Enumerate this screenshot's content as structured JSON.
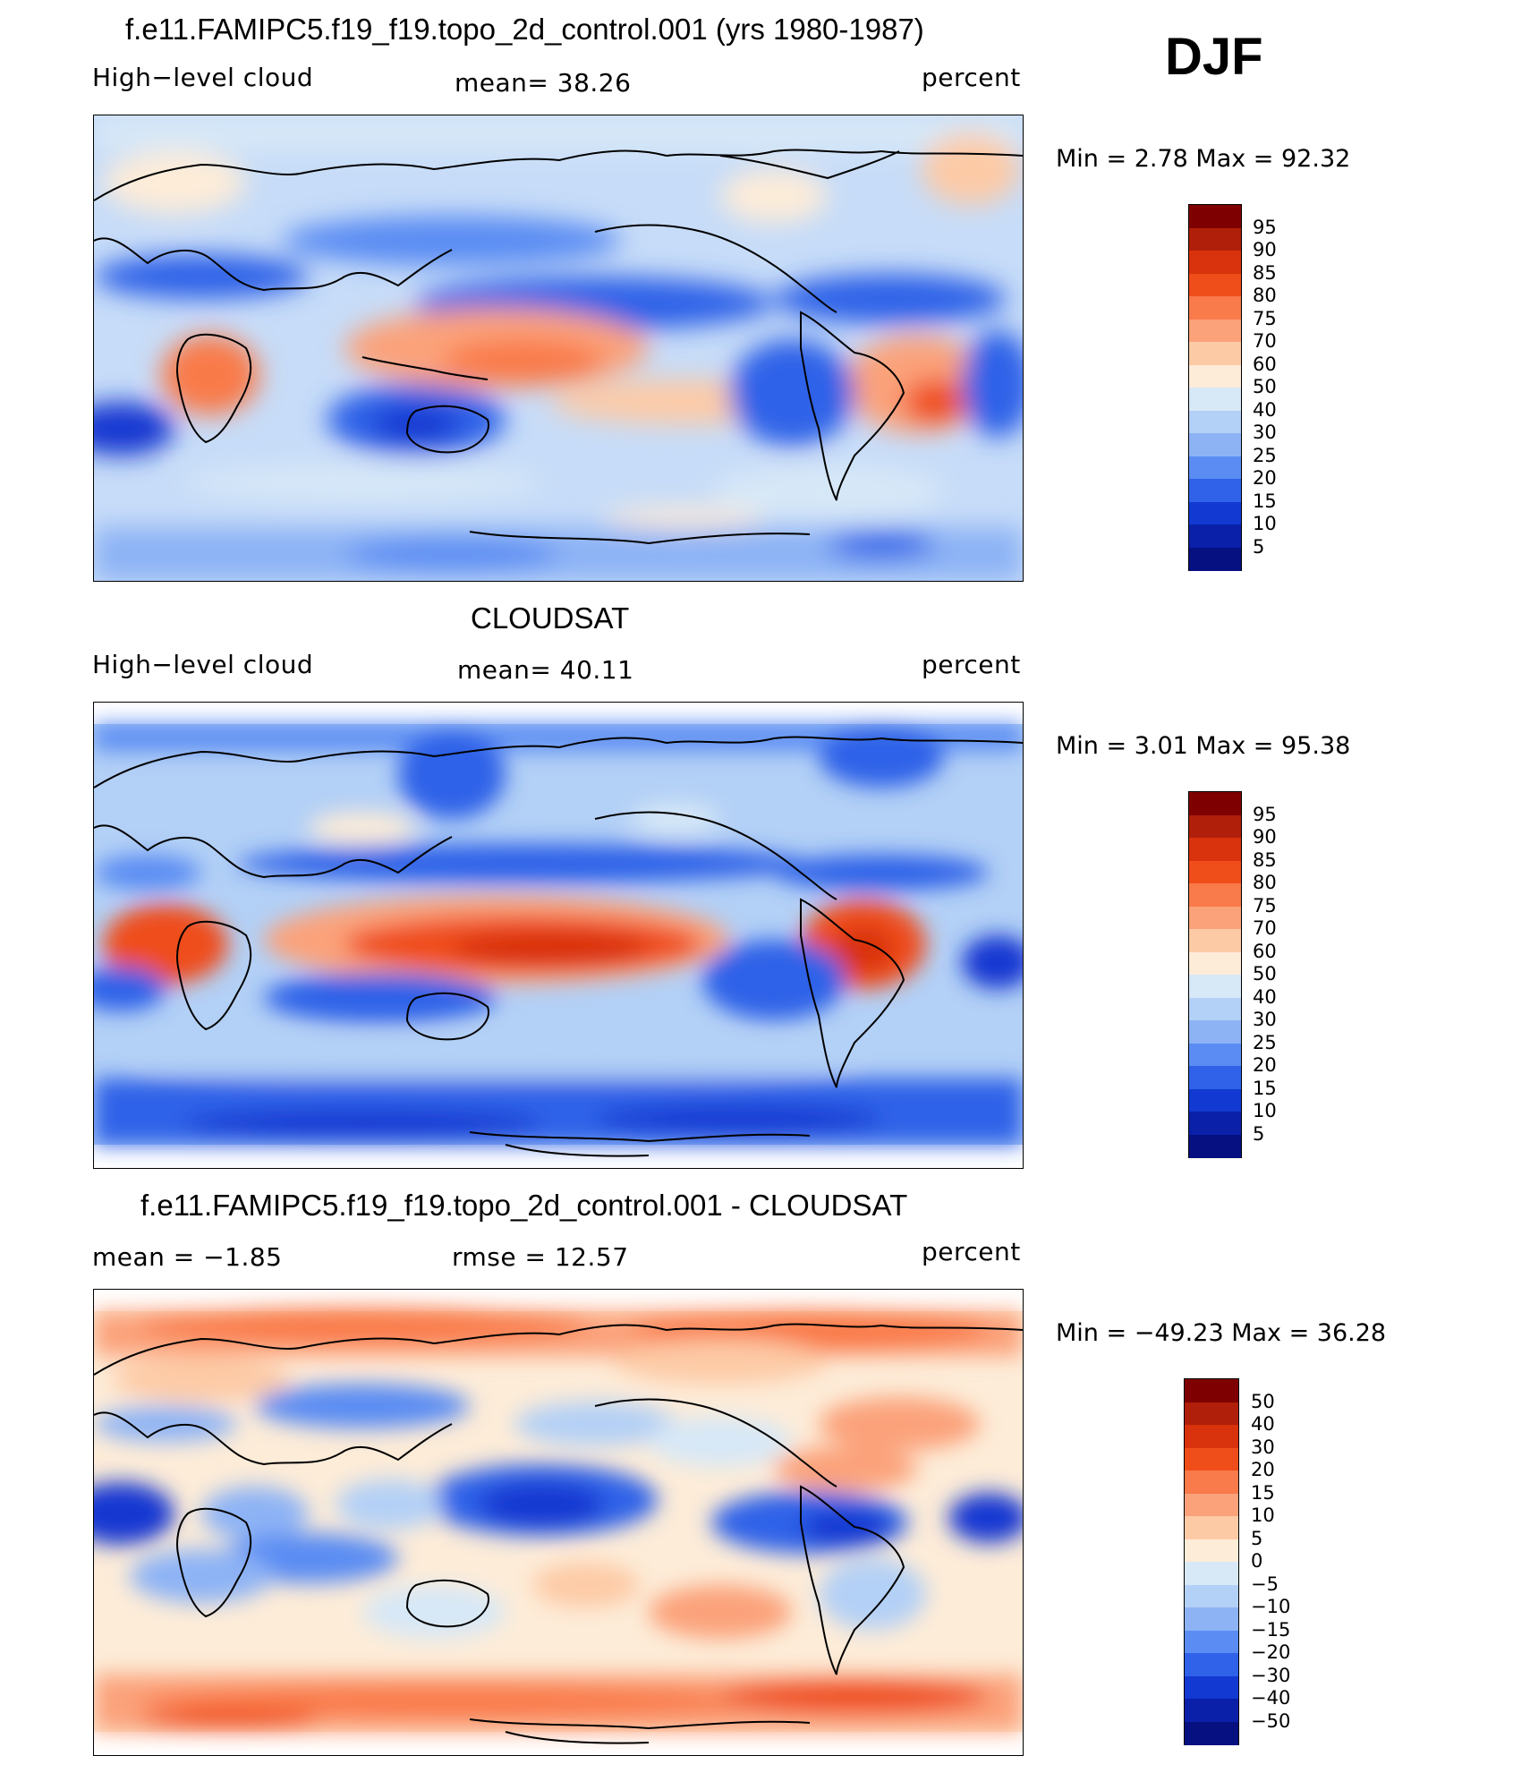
{
  "season": "DJF",
  "panels": [
    {
      "id": "model",
      "title": "f.e11.FAMIPC5.f19_f19.topo_2d_control.001 (yrs 1980-1987)",
      "left_label": "High−level cloud",
      "center_label": "mean=  38.26",
      "right_label": "percent",
      "min_max": "Min =    2.78  Max =   92.32",
      "colorbar": {
        "labels": [
          "95",
          "90",
          "85",
          "80",
          "75",
          "70",
          "60",
          "50",
          "40",
          "30",
          "25",
          "20",
          "15",
          "10",
          "5"
        ],
        "colors": [
          "#7f0000",
          "#b01f0a",
          "#d9330d",
          "#ef4e1a",
          "#f97a4a",
          "#fba27a",
          "#fdcaa6",
          "#fdecd8",
          "#d7e8f7",
          "#b3d0f6",
          "#8db3f5",
          "#5a8cf3",
          "#2f62e8",
          "#1239d1",
          "#0a20a8",
          "#061080"
        ]
      }
    },
    {
      "id": "obs",
      "title": "CLOUDSAT",
      "left_label": "High−level cloud",
      "center_label": "mean=  40.11",
      "right_label": "percent",
      "min_max": "Min =    3.01  Max =   95.38",
      "colorbar": {
        "labels": [
          "95",
          "90",
          "85",
          "80",
          "75",
          "70",
          "60",
          "50",
          "40",
          "30",
          "25",
          "20",
          "15",
          "10",
          "5"
        ],
        "colors": [
          "#7f0000",
          "#b01f0a",
          "#d9330d",
          "#ef4e1a",
          "#f97a4a",
          "#fba27a",
          "#fdcaa6",
          "#fdecd8",
          "#d7e8f7",
          "#b3d0f6",
          "#8db3f5",
          "#5a8cf3",
          "#2f62e8",
          "#1239d1",
          "#0a20a8",
          "#061080"
        ]
      }
    },
    {
      "id": "diff",
      "title": "f.e11.FAMIPC5.f19_f19.topo_2d_control.001 - CLOUDSAT",
      "left_label": "mean =   −1.85",
      "center_label": "rmse =   12.57",
      "right_label": "percent",
      "min_max": "Min = −49.23  Max =   36.28",
      "colorbar": {
        "labels": [
          "50",
          "40",
          "30",
          "20",
          "15",
          "10",
          "5",
          "0",
          "−5",
          "−10",
          "−15",
          "−20",
          "−30",
          "−40",
          "−50"
        ],
        "colors": [
          "#7f0000",
          "#b01f0a",
          "#d9330d",
          "#ef4e1a",
          "#f97a4a",
          "#fba27a",
          "#fdcaa6",
          "#fdecd8",
          "#d7e8f7",
          "#b3d0f6",
          "#8db3f5",
          "#5a8cf3",
          "#2f62e8",
          "#1239d1",
          "#0a20a8",
          "#061080"
        ]
      }
    }
  ]
}
